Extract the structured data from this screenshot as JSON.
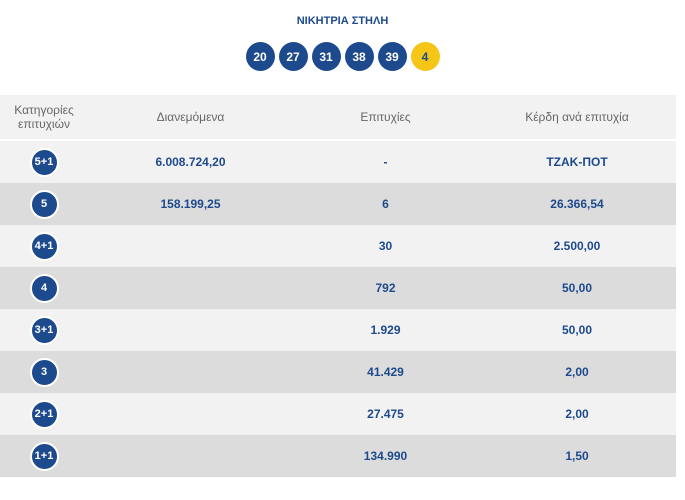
{
  "header": {
    "title": "ΝΙΚΗΤΡΙΑ ΣΤΗΛΗ",
    "numbers": [
      "20",
      "27",
      "31",
      "38",
      "39"
    ],
    "bonus": "4"
  },
  "table": {
    "columns": [
      "Κατηγορίες επιτυχιών",
      "Διανεμόμενα",
      "Επιτυχίες",
      "Κέρδη ανά επιτυχία"
    ],
    "rows": [
      {
        "category": "5+1",
        "distributed": "6.008.724,20",
        "winners": "-",
        "prize": "ΤΖΑΚ-ΠΟΤ"
      },
      {
        "category": "5",
        "distributed": "158.199,25",
        "winners": "6",
        "prize": "26.366,54"
      },
      {
        "category": "4+1",
        "winners": "30",
        "prize": "2.500,00"
      },
      {
        "category": "4",
        "winners": "792",
        "prize": "50,00"
      },
      {
        "category": "3+1",
        "winners": "1.929",
        "prize": "50,00"
      },
      {
        "category": "3",
        "winners": "41.429",
        "prize": "2,00"
      },
      {
        "category": "2+1",
        "winners": "27.475",
        "prize": "2,00"
      },
      {
        "category": "1+1",
        "winners": "134.990",
        "prize": "1,50"
      }
    ]
  }
}
